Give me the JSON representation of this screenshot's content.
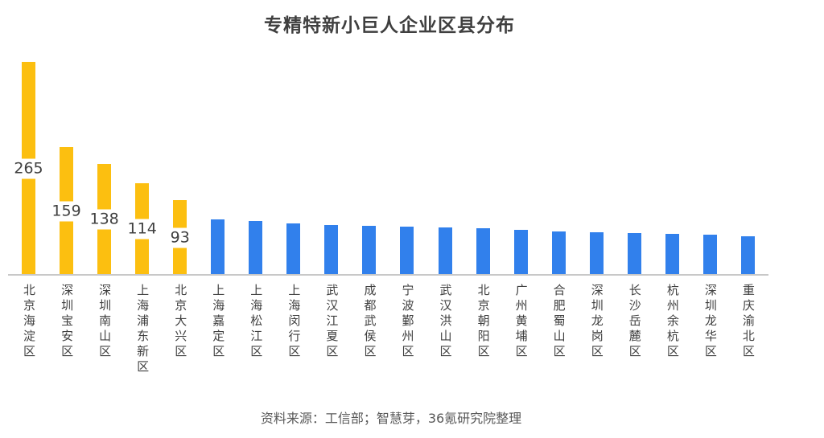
{
  "title": "专精特新小巨人企业区县分布",
  "source_note": "资料来源：工信部；智慧芽，36氪研究院整理",
  "colors": {
    "highlight_bar": "#FCBF10",
    "normal_bar": "#3180EC",
    "axis_line": "#C8C8C8",
    "title_text": "#3F3F3F",
    "axis_label_text": "#404040",
    "value_label_text": "#404040",
    "source_text": "#595959",
    "background": "#FFFFFF"
  },
  "chart_data": {
    "type": "bar",
    "title": "专精特新小巨人企业区县分布",
    "categories": [
      "北京海淀区",
      "深圳宝安区",
      "深圳南山区",
      "上海浦东新区",
      "北京大兴区",
      "上海嘉定区",
      "上海松江区",
      "上海闵行区",
      "武汉江夏区",
      "成都武侯区",
      "宁波鄞州区",
      "武汉洪山区",
      "北京朝阳区",
      "广州黄埔区",
      "合肥蜀山区",
      "深圳龙岗区",
      "长沙岳麓区",
      "杭州余杭区",
      "深圳龙华区",
      "重庆渝北区"
    ],
    "values": [
      265,
      159,
      138,
      114,
      93,
      69,
      67,
      64,
      62,
      61,
      60,
      59,
      58,
      56,
      54,
      53,
      52,
      51,
      50,
      48
    ],
    "labeled_bar_count": 5,
    "labeled_values": [
      265,
      159,
      138,
      114,
      93
    ],
    "highlight_color": "#FCBF10",
    "default_color": "#3180EC",
    "xlabel": "",
    "ylabel": "",
    "ylim": [
      0,
      265
    ],
    "grid": false,
    "legend": false,
    "x_tick_orientation": "vertical",
    "source": "资料来源：工信部；智慧芽，36氪研究院整理"
  }
}
